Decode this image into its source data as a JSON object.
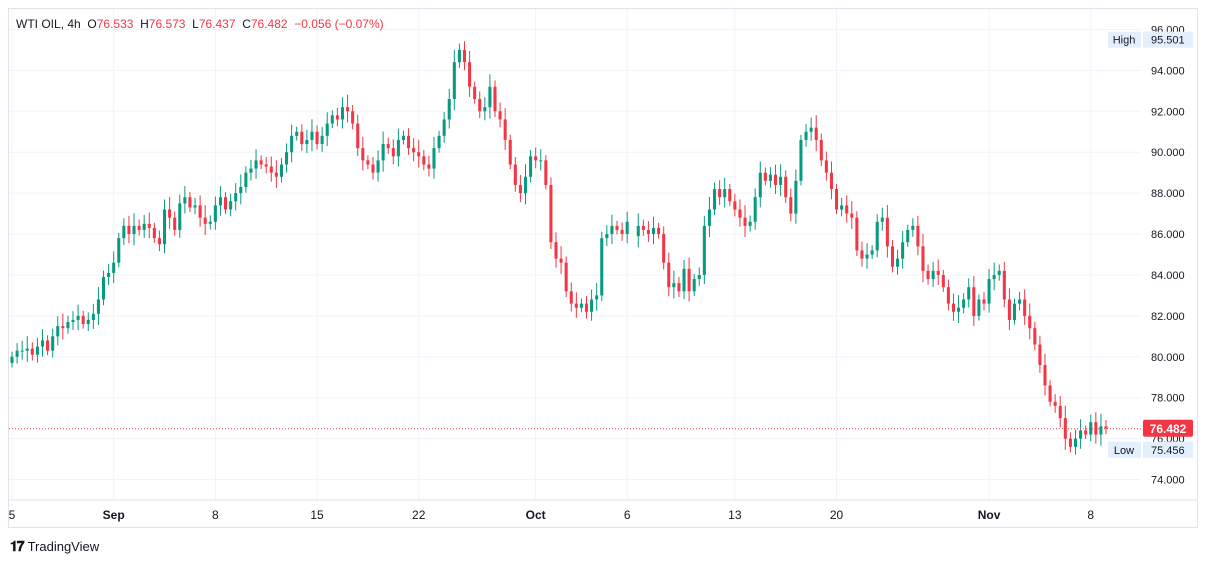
{
  "legend": {
    "symbol": "WTI OIL",
    "interval": "4h",
    "o_label": "O",
    "o": "76.533",
    "h_label": "H",
    "h": "76.573",
    "l_label": "L",
    "l": "76.437",
    "c_label": "C",
    "c": "76.482",
    "change": "−0.056 (−0.07%)"
  },
  "footer": {
    "logo_icon": "tradingview-logo-icon",
    "brand": "TradingView"
  },
  "colors": {
    "up": "#089981",
    "down": "#f23645",
    "grid": "#f0f3fa",
    "axis_text": "#131722",
    "label_bg": "#e3effd"
  },
  "chart_data": {
    "type": "candlestick",
    "interval": "4h",
    "ylim": [
      73.0,
      97.0
    ],
    "y_ticks": [
      "74.000",
      "76.000",
      "78.000",
      "80.000",
      "82.000",
      "84.000",
      "86.000",
      "88.000",
      "90.000",
      "92.000",
      "94.000",
      "96.000"
    ],
    "x_tick_labels": [
      {
        "label": "5",
        "bar": 0
      },
      {
        "label": "Sep",
        "bar": 20
      },
      {
        "label": "8",
        "bar": 40
      },
      {
        "label": "15",
        "bar": 60
      },
      {
        "label": "22",
        "bar": 80
      },
      {
        "label": "Oct",
        "bar": 103
      },
      {
        "label": "6",
        "bar": 121
      },
      {
        "label": "13",
        "bar": 141
      },
      {
        "label": "20",
        "bar": 161
      },
      {
        "label": "Nov",
        "bar": 191
      },
      {
        "label": "8",
        "bar": 211
      }
    ],
    "last_price": "76.482",
    "high_marker": {
      "label": "High",
      "value": "95.501"
    },
    "low_marker": {
      "label": "Low",
      "value": "75.456"
    },
    "gaps": [
      122
    ],
    "closes": [
      80.0,
      80.3,
      80.3,
      80.4,
      80.1,
      80.5,
      80.8,
      80.3,
      81.0,
      81.5,
      81.4,
      81.7,
      81.8,
      82.0,
      81.6,
      81.8,
      82.1,
      82.8,
      83.9,
      84.1,
      84.6,
      85.8,
      86.4,
      86.0,
      86.4,
      86.2,
      86.5,
      86.3,
      85.8,
      85.5,
      87.2,
      86.8,
      86.2,
      87.5,
      87.8,
      87.3,
      87.4,
      86.8,
      86.5,
      86.6,
      87.4,
      87.8,
      87.2,
      87.6,
      88.0,
      88.3,
      89.0,
      89.2,
      89.6,
      89.4,
      89.3,
      89.0,
      88.8,
      89.4,
      90.0,
      90.8,
      91.0,
      90.4,
      90.6,
      91.0,
      90.4,
      90.8,
      91.4,
      91.8,
      91.6,
      92.2,
      92.0,
      91.4,
      90.2,
      89.6,
      89.4,
      89.0,
      89.6,
      90.4,
      90.2,
      89.8,
      90.6,
      90.8,
      90.2,
      90.0,
      89.8,
      89.4,
      89.2,
      90.2,
      90.8,
      91.6,
      92.6,
      94.4,
      95.0,
      94.4,
      93.2,
      92.6,
      92.0,
      92.2,
      93.2,
      92.0,
      91.6,
      90.6,
      89.4,
      88.4,
      88.0,
      88.8,
      89.8,
      89.6,
      89.6,
      88.4,
      85.6,
      84.8,
      84.6,
      83.2,
      82.6,
      82.4,
      82.6,
      82.2,
      82.8,
      83.0,
      85.8,
      86.0,
      86.4,
      86.2,
      86.0,
      86.6,
      86.4,
      86.2,
      86.0,
      86.3,
      86.0,
      84.6,
      83.4,
      83.6,
      83.2,
      84.3,
      83.2,
      83.8,
      84.0,
      86.4,
      87.2,
      88.2,
      87.8,
      88.2,
      87.6,
      87.2,
      86.8,
      86.4,
      86.6,
      87.8,
      89.0,
      88.6,
      88.9,
      88.4,
      88.8,
      87.8,
      87.0,
      88.6,
      90.6,
      91.0,
      91.2,
      90.6,
      89.6,
      89.0,
      88.2,
      87.2,
      87.4,
      87.0,
      86.8,
      85.2,
      84.8,
      85.0,
      85.2,
      86.6,
      86.8,
      85.4,
      84.4,
      84.8,
      85.6,
      86.2,
      86.4,
      85.4,
      84.2,
      83.8,
      84.2,
      84.0,
      83.4,
      82.6,
      82.2,
      82.4,
      82.8,
      83.4,
      82.0,
      82.8,
      82.6,
      83.8,
      84.0,
      84.2,
      82.8,
      81.8,
      82.6,
      82.8,
      82.0,
      81.4,
      80.6,
      79.6,
      78.6,
      77.8,
      77.6,
      77.0,
      76.0,
      75.6,
      76.0,
      76.4,
      76.2,
      76.8,
      76.2,
      76.6,
      76.5
    ]
  }
}
